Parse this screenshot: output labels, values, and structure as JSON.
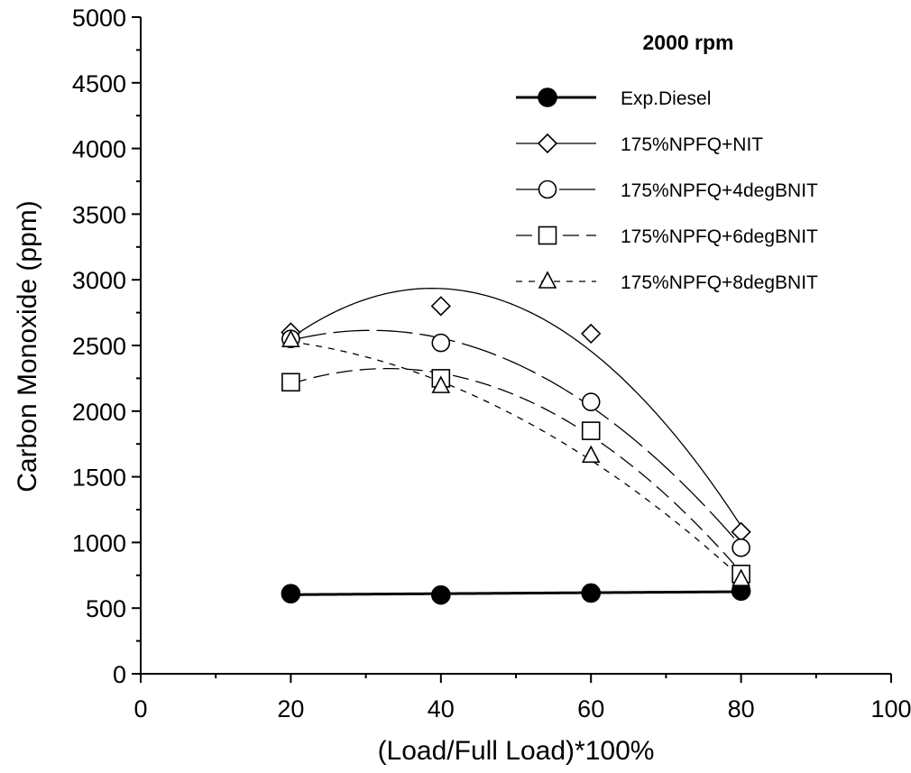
{
  "chart_data": {
    "type": "line",
    "title": "",
    "annotation": "2000 rpm",
    "xlabel": "(Load/Full Load)*100%",
    "ylabel": "Carbon Monoxide (ppm)",
    "xlim": [
      0,
      100
    ],
    "ylim": [
      0,
      5000
    ],
    "x_ticks": [
      "0",
      "20",
      "40",
      "60",
      "80",
      "100"
    ],
    "y_ticks": [
      "0",
      "500",
      "1000",
      "1500",
      "2000",
      "2500",
      "3000",
      "3500",
      "4000",
      "4500",
      "5000"
    ],
    "grid": false,
    "legend_position": "top-right",
    "x": [
      20,
      40,
      60,
      80
    ],
    "series": [
      {
        "name": "Exp.Diesel",
        "values": [
          610,
          600,
          615,
          630
        ],
        "marker": "filled-circle",
        "line": "solid-bold",
        "fit": "linear"
      },
      {
        "name": "175%NPFQ+NIT",
        "values": [
          2600,
          2800,
          2590,
          1080
        ],
        "marker": "diamond",
        "line": "solid",
        "fit": "quadratic"
      },
      {
        "name": "175%NPFQ+4degBNIT",
        "values": [
          2550,
          2520,
          2070,
          960
        ],
        "marker": "circle",
        "line": "long-dash",
        "fit": "quadratic"
      },
      {
        "name": "175%NPFQ+6degBNIT",
        "values": [
          2220,
          2250,
          1850,
          760
        ],
        "marker": "square",
        "line": "dash",
        "fit": "quadratic"
      },
      {
        "name": "175%NPFQ+8degBNIT",
        "values": [
          2540,
          2190,
          1660,
          720
        ],
        "marker": "triangle",
        "line": "short-dash",
        "fit": "quadratic"
      }
    ]
  }
}
